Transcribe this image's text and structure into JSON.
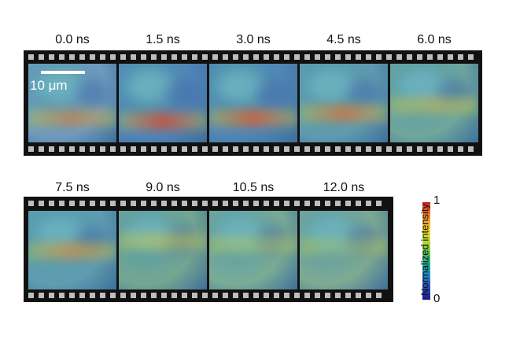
{
  "row1": [
    {
      "time": "0.0 ns",
      "band": "rgba(230,120,40,0.55)",
      "bandTop": 58,
      "base": "#6f9bbf"
    },
    {
      "time": "1.5 ns",
      "band": "rgba(225,70,40,0.75)",
      "bandTop": 62,
      "base": "#4f84b8"
    },
    {
      "time": "3.0 ns",
      "band": "rgba(230,90,40,0.75)",
      "bandTop": 58,
      "base": "#4f86b6"
    },
    {
      "time": "4.5 ns",
      "band": "rgba(235,110,40,0.65)",
      "bandTop": 52,
      "base": "#5f9bb0"
    },
    {
      "time": "6.0 ns",
      "band": "rgba(230,190,60,0.45)",
      "bandTop": 42,
      "base": "#6ea69c"
    }
  ],
  "row2": [
    {
      "time": "7.5 ns",
      "band": "rgba(235,140,45,0.6)",
      "bandTop": 40,
      "base": "#5f9db0"
    },
    {
      "time": "9.0 ns",
      "band": "rgba(225,200,60,0.45)",
      "bandTop": 28,
      "base": "#74a790"
    },
    {
      "time": "10.5 ns",
      "band": "rgba(200,210,80,0.35)",
      "bandTop": 32,
      "base": "#7aac95"
    },
    {
      "time": "12.0 ns",
      "band": "rgba(180,205,90,0.3)",
      "bandTop": 34,
      "base": "#7eaa92"
    }
  ],
  "scale_bar": "10 μm",
  "colorbar": {
    "label": "Normalized intensity",
    "max": "1",
    "min": "0"
  }
}
